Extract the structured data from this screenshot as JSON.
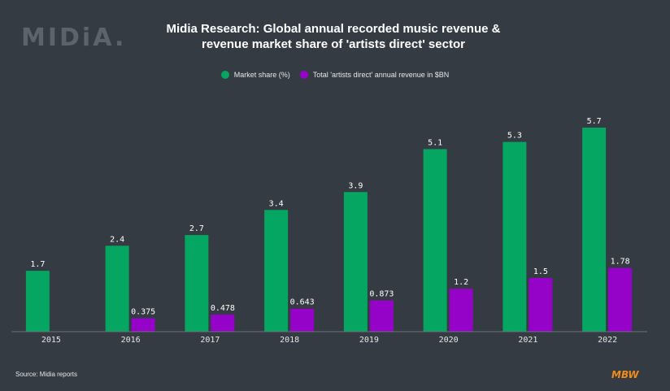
{
  "logo": "MIDiA.",
  "source": "Source: Midia reports",
  "brand": "MBW",
  "colors": {
    "market_share": "#05a562",
    "revenue": "#9503c9",
    "background": "#343b43"
  },
  "chart_data": {
    "type": "bar",
    "title": "Midia Research: Global annual recorded music revenue & revenue market share of 'artists direct' sector",
    "title_lines": [
      "Midia Research: Global annual recorded music revenue &",
      "revenue market share of 'artists direct' sector"
    ],
    "categories": [
      "2015",
      "2016",
      "2017",
      "2018",
      "2019",
      "2020",
      "2021",
      "2022"
    ],
    "series": [
      {
        "name": "Market share (%)",
        "values": [
          1.7,
          2.4,
          2.7,
          3.4,
          3.9,
          5.1,
          5.3,
          5.7
        ],
        "labels": [
          "1.7",
          "2.4",
          "2.7",
          "3.4",
          "3.9",
          "5.1",
          "5.3",
          "5.7"
        ]
      },
      {
        "name": "Total 'artists direct' annual revenue in $BN",
        "values": [
          null,
          0.375,
          0.478,
          0.643,
          0.873,
          1.2,
          1.5,
          1.78
        ],
        "labels": [
          "",
          "0.375",
          "0.478",
          "0.643",
          "0.873",
          "1.2",
          "1.5",
          "1.78"
        ]
      }
    ],
    "xlabel": "",
    "ylabel": "",
    "ylim": [
      0,
      5.7
    ],
    "legend": "top-center",
    "grid": false
  }
}
